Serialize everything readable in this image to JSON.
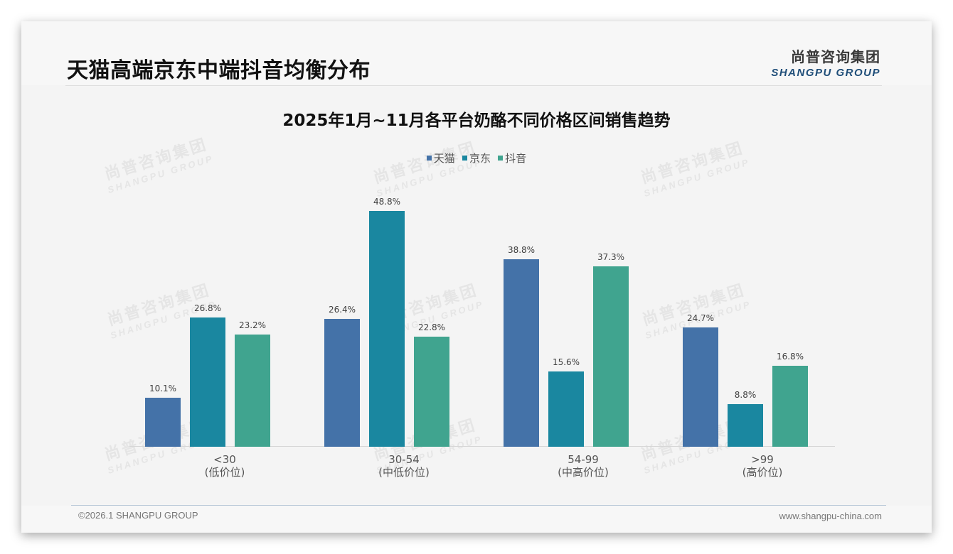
{
  "header": {
    "title": "天猫高端京东中端抖音均衡分布",
    "logo_cn": "尚普咨询集团",
    "logo_en": "SHANGPU GROUP"
  },
  "watermark": {
    "cn": "尚普咨询集团",
    "en": "SHANGPU GROUP"
  },
  "colors": {
    "tmall": "#4472a8",
    "jd": "#1a87a0",
    "douyin": "#40a48f"
  },
  "chart_data": {
    "type": "bar",
    "title": "2025年1月~11月各平台奶酪不同价格区间销售趋势",
    "categories": [
      "<30",
      "30-54",
      "54-99",
      ">99"
    ],
    "category_sublabels": [
      "(低价位)",
      "(中低价位)",
      "(中高价位)",
      "(高价位)"
    ],
    "series": [
      {
        "name": "天猫",
        "values": [
          10.1,
          26.4,
          38.8,
          24.7
        ],
        "labels": [
          "10.1%",
          "26.4%",
          "38.8%",
          "24.7%"
        ]
      },
      {
        "name": "京东",
        "values": [
          26.8,
          48.8,
          15.6,
          8.8
        ],
        "labels": [
          "26.8%",
          "48.8%",
          "15.6%",
          "8.8%"
        ]
      },
      {
        "name": "抖音",
        "values": [
          23.2,
          22.8,
          37.3,
          16.8
        ],
        "labels": [
          "23.2%",
          "22.8%",
          "37.3%",
          "16.8%"
        ]
      }
    ],
    "xlabel": "",
    "ylabel": "",
    "ylim": [
      0,
      50
    ],
    "unit": "%",
    "grid": false,
    "legend_position": "top"
  },
  "footer": {
    "copyright": "©2026.1 SHANGPU GROUP",
    "website": "www.shangpu-china.com"
  }
}
